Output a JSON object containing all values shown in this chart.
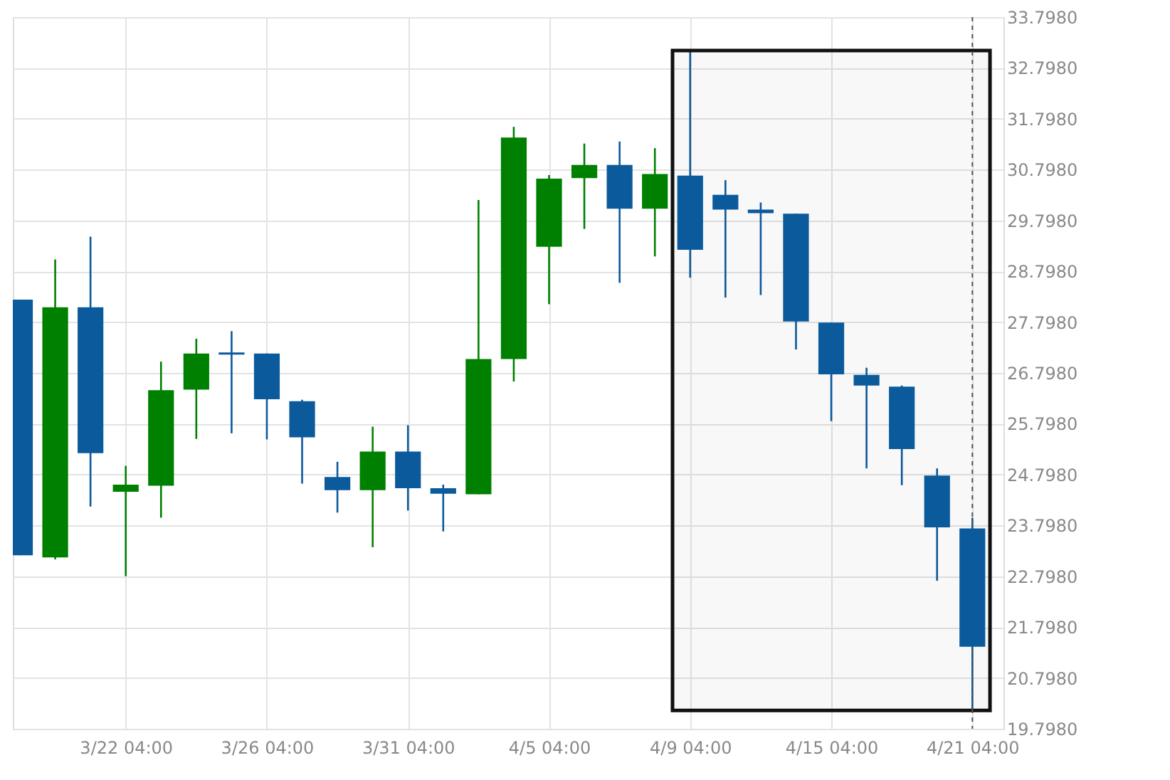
{
  "chart_data": {
    "type": "candlestick",
    "categories": [
      null,
      null,
      null,
      "3/22 04:00",
      null,
      null,
      null,
      "3/26 04:00",
      null,
      null,
      null,
      "3/31 04:00",
      null,
      null,
      null,
      "4/5 04:00",
      null,
      null,
      null,
      "4/9 04:00",
      null,
      null,
      null,
      "4/15 04:00",
      null,
      null,
      null,
      "4/21 04:00"
    ],
    "ohlc": [
      [
        28.24,
        28.24,
        23.21,
        23.21
      ],
      [
        23.17,
        29.03,
        23.13,
        28.09
      ],
      [
        28.09,
        29.48,
        24.17,
        25.22
      ],
      [
        24.46,
        24.97,
        22.8,
        24.6
      ],
      [
        24.58,
        27.02,
        23.95,
        26.46
      ],
      [
        26.47,
        27.47,
        25.5,
        27.18
      ],
      [
        27.2,
        27.62,
        25.61,
        27.16
      ],
      [
        27.18,
        27.18,
        25.49,
        26.28
      ],
      [
        26.24,
        26.27,
        24.62,
        25.53
      ],
      [
        24.75,
        25.05,
        24.05,
        24.49
      ],
      [
        24.49,
        25.74,
        23.37,
        25.25
      ],
      [
        25.25,
        25.77,
        24.09,
        24.53
      ],
      [
        24.53,
        24.6,
        23.68,
        24.42
      ],
      [
        24.41,
        30.2,
        24.41,
        27.07
      ],
      [
        27.07,
        31.64,
        26.63,
        31.43
      ],
      [
        29.28,
        30.69,
        28.15,
        30.62
      ],
      [
        30.63,
        31.31,
        29.63,
        30.89
      ],
      [
        30.89,
        31.35,
        28.57,
        30.03
      ],
      [
        30.03,
        31.22,
        29.09,
        30.71
      ],
      [
        30.68,
        33.14,
        28.67,
        29.22
      ],
      [
        30.3,
        30.59,
        28.28,
        30.01
      ],
      [
        30.01,
        30.15,
        28.33,
        29.94
      ],
      [
        29.93,
        29.93,
        27.26,
        27.81
      ],
      [
        27.79,
        27.79,
        25.85,
        26.77
      ],
      [
        26.76,
        26.9,
        24.92,
        26.55
      ],
      [
        26.53,
        26.55,
        24.59,
        25.3
      ],
      [
        24.78,
        24.92,
        22.71,
        23.76
      ],
      [
        23.74,
        23.95,
        20.16,
        21.41
      ]
    ],
    "colors": [
      "#0b5a9c",
      "#008000",
      "#0b5a9c",
      "#008000",
      "#008000",
      "#008000",
      "#0b5a9c",
      "#0b5a9c",
      "#0b5a9c",
      "#0b5a9c",
      "#008000",
      "#0b5a9c",
      "#0b5a9c",
      "#008000",
      "#008000",
      "#008000",
      "#008000",
      "#0b5a9c",
      "#008000",
      "#0b5a9c",
      "#0b5a9c",
      "#0b5a9c",
      "#0b5a9c",
      "#0b5a9c",
      "#0b5a9c",
      "#0b5a9c",
      "#0b5a9c",
      "#0b5a9c"
    ],
    "ylim": [
      19.798,
      33.798
    ],
    "yticks": [
      {
        "value": 19.798,
        "label": "19.7980"
      },
      {
        "value": 20.798,
        "label": "20.7980"
      },
      {
        "value": 21.798,
        "label": "21.7980"
      },
      {
        "value": 22.798,
        "label": "22.7980"
      },
      {
        "value": 23.798,
        "label": "23.7980"
      },
      {
        "value": 24.798,
        "label": "24.7980"
      },
      {
        "value": 25.798,
        "label": "25.7980"
      },
      {
        "value": 26.798,
        "label": "26.7980"
      },
      {
        "value": 27.798,
        "label": "27.7980"
      },
      {
        "value": 28.798,
        "label": "28.7980"
      },
      {
        "value": 29.798,
        "label": "29.7980"
      },
      {
        "value": 30.798,
        "label": "30.7980"
      },
      {
        "value": 31.798,
        "label": "31.7980"
      },
      {
        "value": 32.798,
        "label": "32.7980"
      },
      {
        "value": 33.798,
        "label": "33.7980"
      }
    ],
    "grid": true,
    "ref_lines": [
      {
        "axis": "x",
        "value": "4/21 04:00",
        "color": "#555555",
        "line_style": "dashed"
      }
    ],
    "bands": [
      {
        "axis": "x",
        "from": "4/9 04:00",
        "to": "4/21 04:00",
        "color": "#111111"
      }
    ]
  }
}
